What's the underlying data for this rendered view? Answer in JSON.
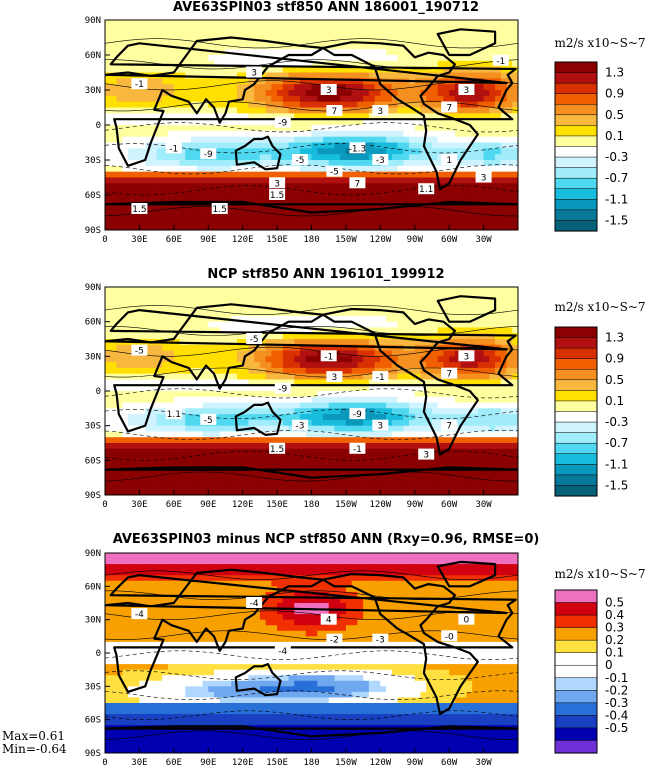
{
  "panels": [
    {
      "title": "AVE63SPIN03 stf850 ANN 186001_190712",
      "units": "m2/s x10~S~7",
      "y_ticks": [
        "90N",
        "60N",
        "30N",
        "0",
        "30S",
        "60S",
        "90S"
      ],
      "x_ticks": [
        "0",
        "30E",
        "60E",
        "90E",
        "120E",
        "150E",
        "180",
        "150W",
        "120W",
        "90W",
        "60W",
        "30W"
      ],
      "legend": [
        "1.3",
        "0.9",
        "0.5",
        "0.1",
        "-0.3",
        "-0.7",
        "-1.1",
        "-1.5"
      ],
      "legend_colors": [
        "#8b0000",
        "#b01010",
        "#d83000",
        "#f06000",
        "#f49020",
        "#f8b840",
        "#ffe000",
        "#ffffa0",
        "#ffffff",
        "#d0f4ff",
        "#a0ecfa",
        "#50d8f0",
        "#18bcdc",
        "#0a98bc",
        "#087898",
        "#056078"
      ],
      "contour_labels": [
        "3",
        "3",
        "3",
        "7",
        "7",
        "3",
        "-1",
        "-9",
        "-1.3",
        "-5",
        "-9",
        "-3",
        "-1",
        "1",
        "3",
        "7",
        "1.1",
        "1.5",
        "1.5",
        "1.5",
        "-5",
        "3",
        "-1"
      ]
    },
    {
      "title": "NCP stf850 ANN 196101_199912",
      "units": "m2/s x10~S~7",
      "y_ticks": [
        "90N",
        "60N",
        "30N",
        "0",
        "30S",
        "60S",
        "90S"
      ],
      "x_ticks": [
        "0",
        "30E",
        "60E",
        "90E",
        "120E",
        "150E",
        "180",
        "150W",
        "120W",
        "90W",
        "60W",
        "30W"
      ],
      "legend": [
        "1.3",
        "0.9",
        "0.5",
        "0.1",
        "-0.3",
        "-0.7",
        "-1.1",
        "-1.5"
      ],
      "legend_colors": [
        "#8b0000",
        "#b01010",
        "#d83000",
        "#f06000",
        "#f49020",
        "#f8b840",
        "#ffe000",
        "#ffffa0",
        "#ffffff",
        "#d0f4ff",
        "#a0ecfa",
        "#50d8f0",
        "#18bcdc",
        "#0a98bc",
        "#087898",
        "#056078"
      ],
      "contour_labels": [
        "-1",
        "-5",
        "3",
        "3",
        "7",
        "-1",
        "-5",
        "-9",
        "-9",
        "-3",
        "-5",
        "3",
        "1.1",
        "7",
        "1.5",
        "-1",
        "3"
      ]
    },
    {
      "title": "AVE63SPIN03 minus NCP stf850 ANN (Rxy=0.96, RMSE=0)",
      "units": "m2/s x10~S~7",
      "y_ticks": [
        "90N",
        "60N",
        "30N",
        "0",
        "30S",
        "60S",
        "90S"
      ],
      "x_ticks": [
        "0",
        "30E",
        "60E",
        "90E",
        "120E",
        "150E",
        "180",
        "150W",
        "120W",
        "90W",
        "60W",
        "30W"
      ],
      "legend": [
        "0.5",
        "0.4",
        "0.3",
        "0.2",
        "0.1",
        "0",
        "-0.1",
        "-0.2",
        "-0.3",
        "-0.4",
        "-0.5"
      ],
      "legend_colors": [
        "#f070c0",
        "#d00010",
        "#f03000",
        "#f8a000",
        "#ffe040",
        "#ffffff",
        "#ffffff",
        "#b0d8ff",
        "#70a8f0",
        "#2870d8",
        "#1840c0",
        "#0000b0",
        "#7030d8"
      ],
      "contour_labels": [
        "4",
        "-4",
        "0",
        "-2",
        "-0",
        "-3",
        "-4",
        "-4"
      ],
      "stats": {
        "max": "Max=0.61",
        "min": "Min=-0.64"
      }
    }
  ]
}
